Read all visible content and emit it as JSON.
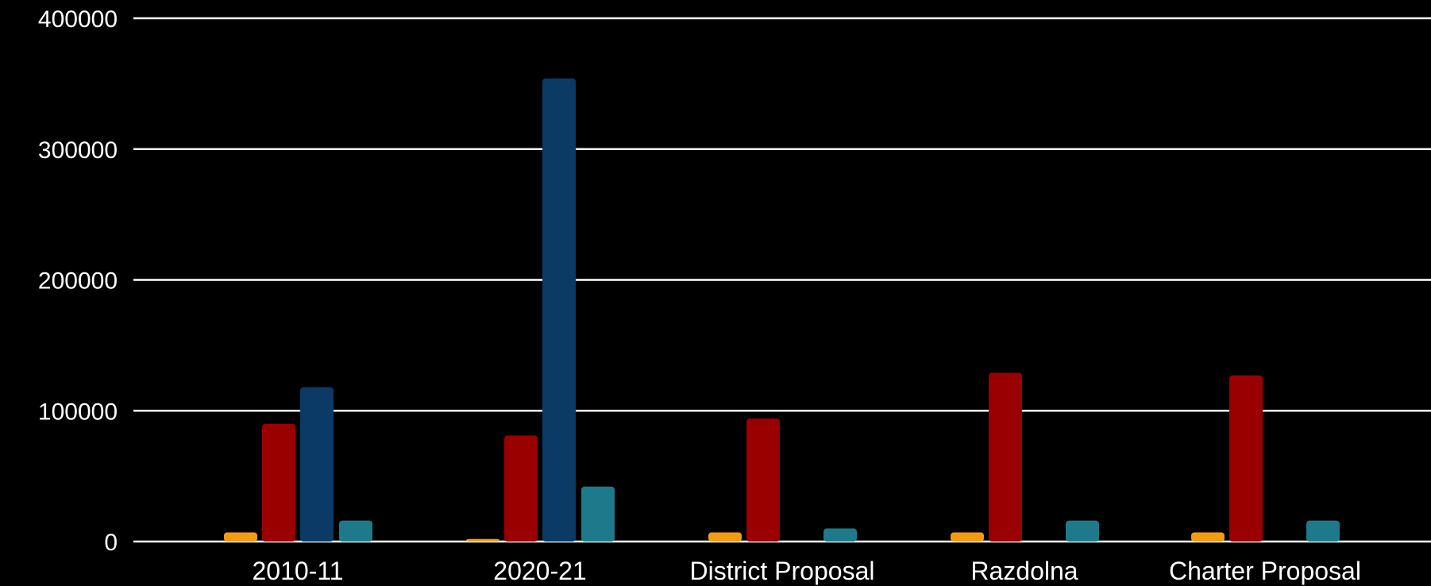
{
  "chart_data": {
    "type": "bar",
    "categories": [
      "2010-11",
      "2020-21",
      "District Proposal",
      "Razdolna",
      "Charter Proposal"
    ],
    "series": [
      {
        "color": "#f39c12",
        "values": [
          7000,
          2000,
          7000,
          7000,
          7000
        ]
      },
      {
        "color": "#9b0000",
        "values": [
          90000,
          81000,
          94000,
          129000,
          127000
        ]
      },
      {
        "color": "#0b3a66",
        "values": [
          118000,
          354000,
          0,
          0,
          0
        ]
      },
      {
        "color": "#1e7a8a",
        "values": [
          16000,
          42000,
          10000,
          16000,
          16000
        ]
      }
    ],
    "yticks": [
      "0",
      "100000",
      "200000",
      "300000",
      "400000"
    ],
    "ylim": [
      0,
      400000
    ],
    "grid": true,
    "legend": "none",
    "background": "#000000",
    "gridline_color": "#ffffff",
    "text_color": "#ffffff"
  }
}
